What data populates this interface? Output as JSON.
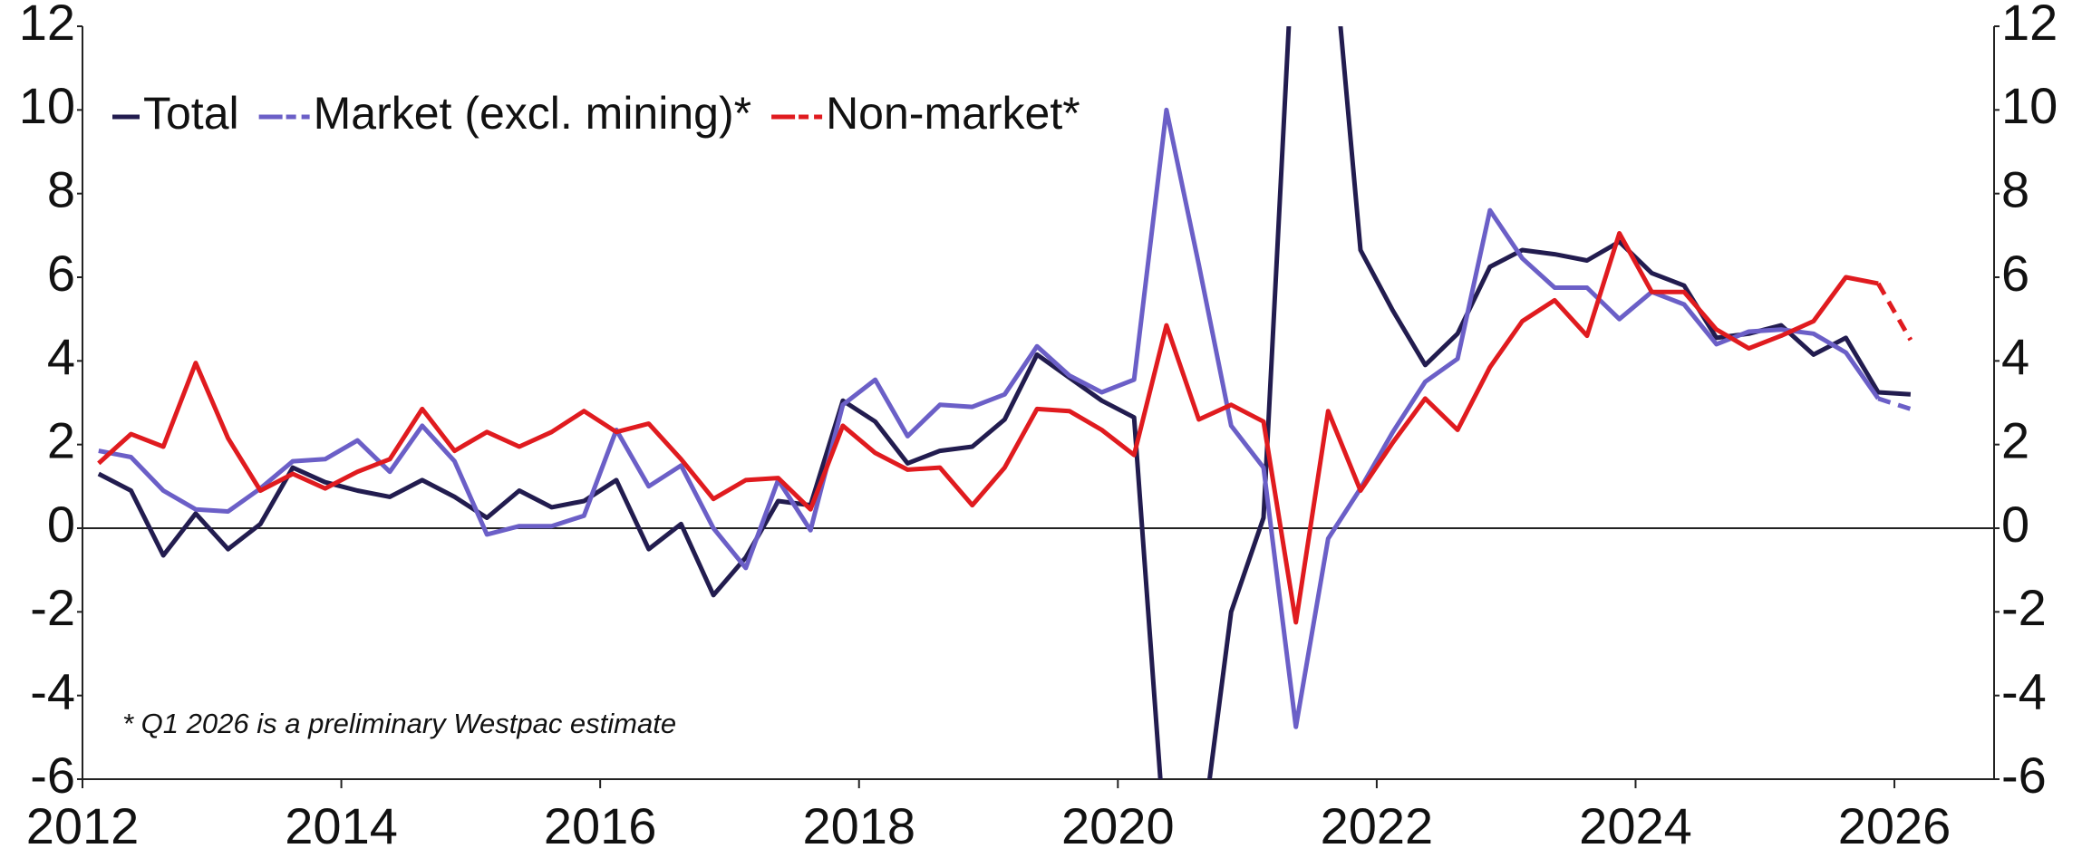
{
  "chart_data": {
    "type": "line",
    "annotation": "* Q1 2026 is a preliminary Westpac estimate",
    "x": [
      2012.125,
      2012.375,
      2012.625,
      2012.875,
      2013.125,
      2013.375,
      2013.625,
      2013.875,
      2014.125,
      2014.375,
      2014.625,
      2014.875,
      2015.125,
      2015.375,
      2015.625,
      2015.875,
      2016.125,
      2016.375,
      2016.625,
      2016.875,
      2017.125,
      2017.375,
      2017.625,
      2017.875,
      2018.125,
      2018.375,
      2018.625,
      2018.875,
      2019.125,
      2019.375,
      2019.625,
      2019.875,
      2020.125,
      2020.375,
      2020.625,
      2020.875,
      2021.125,
      2021.375,
      2021.625,
      2021.875,
      2022.125,
      2022.375,
      2022.625,
      2022.875,
      2023.125,
      2023.375,
      2023.625,
      2023.875,
      2024.125,
      2024.375,
      2024.625,
      2024.875,
      2025.125,
      2025.375,
      2025.625,
      2025.875,
      2026.125
    ],
    "series": [
      {
        "name": "Total",
        "color": "#221c4f",
        "dash_last_segment": false,
        "values": [
          1.3,
          0.9,
          -0.65,
          0.35,
          -0.5,
          0.1,
          1.45,
          1.1,
          0.9,
          0.75,
          1.15,
          0.75,
          0.25,
          0.9,
          0.5,
          0.65,
          1.15,
          -0.5,
          0.1,
          -1.6,
          -0.7,
          0.65,
          0.55,
          3.05,
          2.55,
          1.55,
          1.85,
          1.95,
          2.6,
          4.15,
          3.6,
          3.05,
          2.65,
          -8,
          -8,
          -2.0,
          0.25,
          15.3,
          15.3,
          6.65,
          5.2,
          3.9,
          4.65,
          6.25,
          6.65,
          6.55,
          6.4,
          6.85,
          6.1,
          5.8,
          4.55,
          4.65,
          4.85,
          4.15,
          4.55,
          3.25,
          3.2
        ]
      },
      {
        "name": "Market (excl. mining)*",
        "color": "#6b5fc7",
        "dash_last_segment": true,
        "values": [
          1.85,
          1.7,
          0.9,
          0.45,
          0.4,
          0.95,
          1.6,
          1.65,
          2.1,
          1.35,
          2.45,
          1.6,
          -0.15,
          0.05,
          0.05,
          0.3,
          2.35,
          1.0,
          1.5,
          0.0,
          -0.95,
          1.15,
          -0.05,
          2.95,
          3.55,
          2.2,
          2.95,
          2.9,
          3.2,
          4.35,
          3.65,
          3.25,
          3.55,
          10.0,
          6.3,
          2.45,
          1.45,
          -4.75,
          -0.25,
          0.95,
          2.3,
          3.5,
          4.05,
          7.6,
          6.45,
          5.75,
          5.75,
          5.0,
          5.65,
          5.35,
          4.4,
          4.7,
          4.75,
          4.65,
          4.2,
          3.1,
          2.85
        ]
      },
      {
        "name": "Non-market*",
        "color": "#e01b1f",
        "dash_last_segment": true,
        "values": [
          1.55,
          2.25,
          1.95,
          3.95,
          2.15,
          0.9,
          1.3,
          0.95,
          1.35,
          1.65,
          2.85,
          1.85,
          2.3,
          1.95,
          2.3,
          2.8,
          2.3,
          2.5,
          1.65,
          0.7,
          1.15,
          1.2,
          0.45,
          2.45,
          1.8,
          1.4,
          1.45,
          0.55,
          1.45,
          2.85,
          2.8,
          2.35,
          1.75,
          4.85,
          2.6,
          2.95,
          2.55,
          -2.25,
          2.8,
          0.9,
          2.05,
          3.1,
          2.35,
          3.85,
          4.95,
          5.45,
          4.6,
          7.05,
          5.65,
          5.65,
          4.75,
          4.3,
          4.6,
          4.95,
          6.0,
          5.85,
          4.5
        ]
      }
    ],
    "xlim": [
      2012,
      2026.77
    ],
    "xticks": [
      2012,
      2014,
      2016,
      2018,
      2020,
      2022,
      2024,
      2026
    ],
    "ylim": [
      -6,
      12
    ],
    "yticks": [
      -6,
      -4,
      -2,
      0,
      2,
      4,
      6,
      8,
      10,
      12
    ],
    "y2lim": [
      -6,
      12
    ],
    "y2ticks": [
      -6,
      -4,
      -2,
      0,
      2,
      4,
      6,
      8,
      10,
      12
    ],
    "legend": "top-left"
  }
}
